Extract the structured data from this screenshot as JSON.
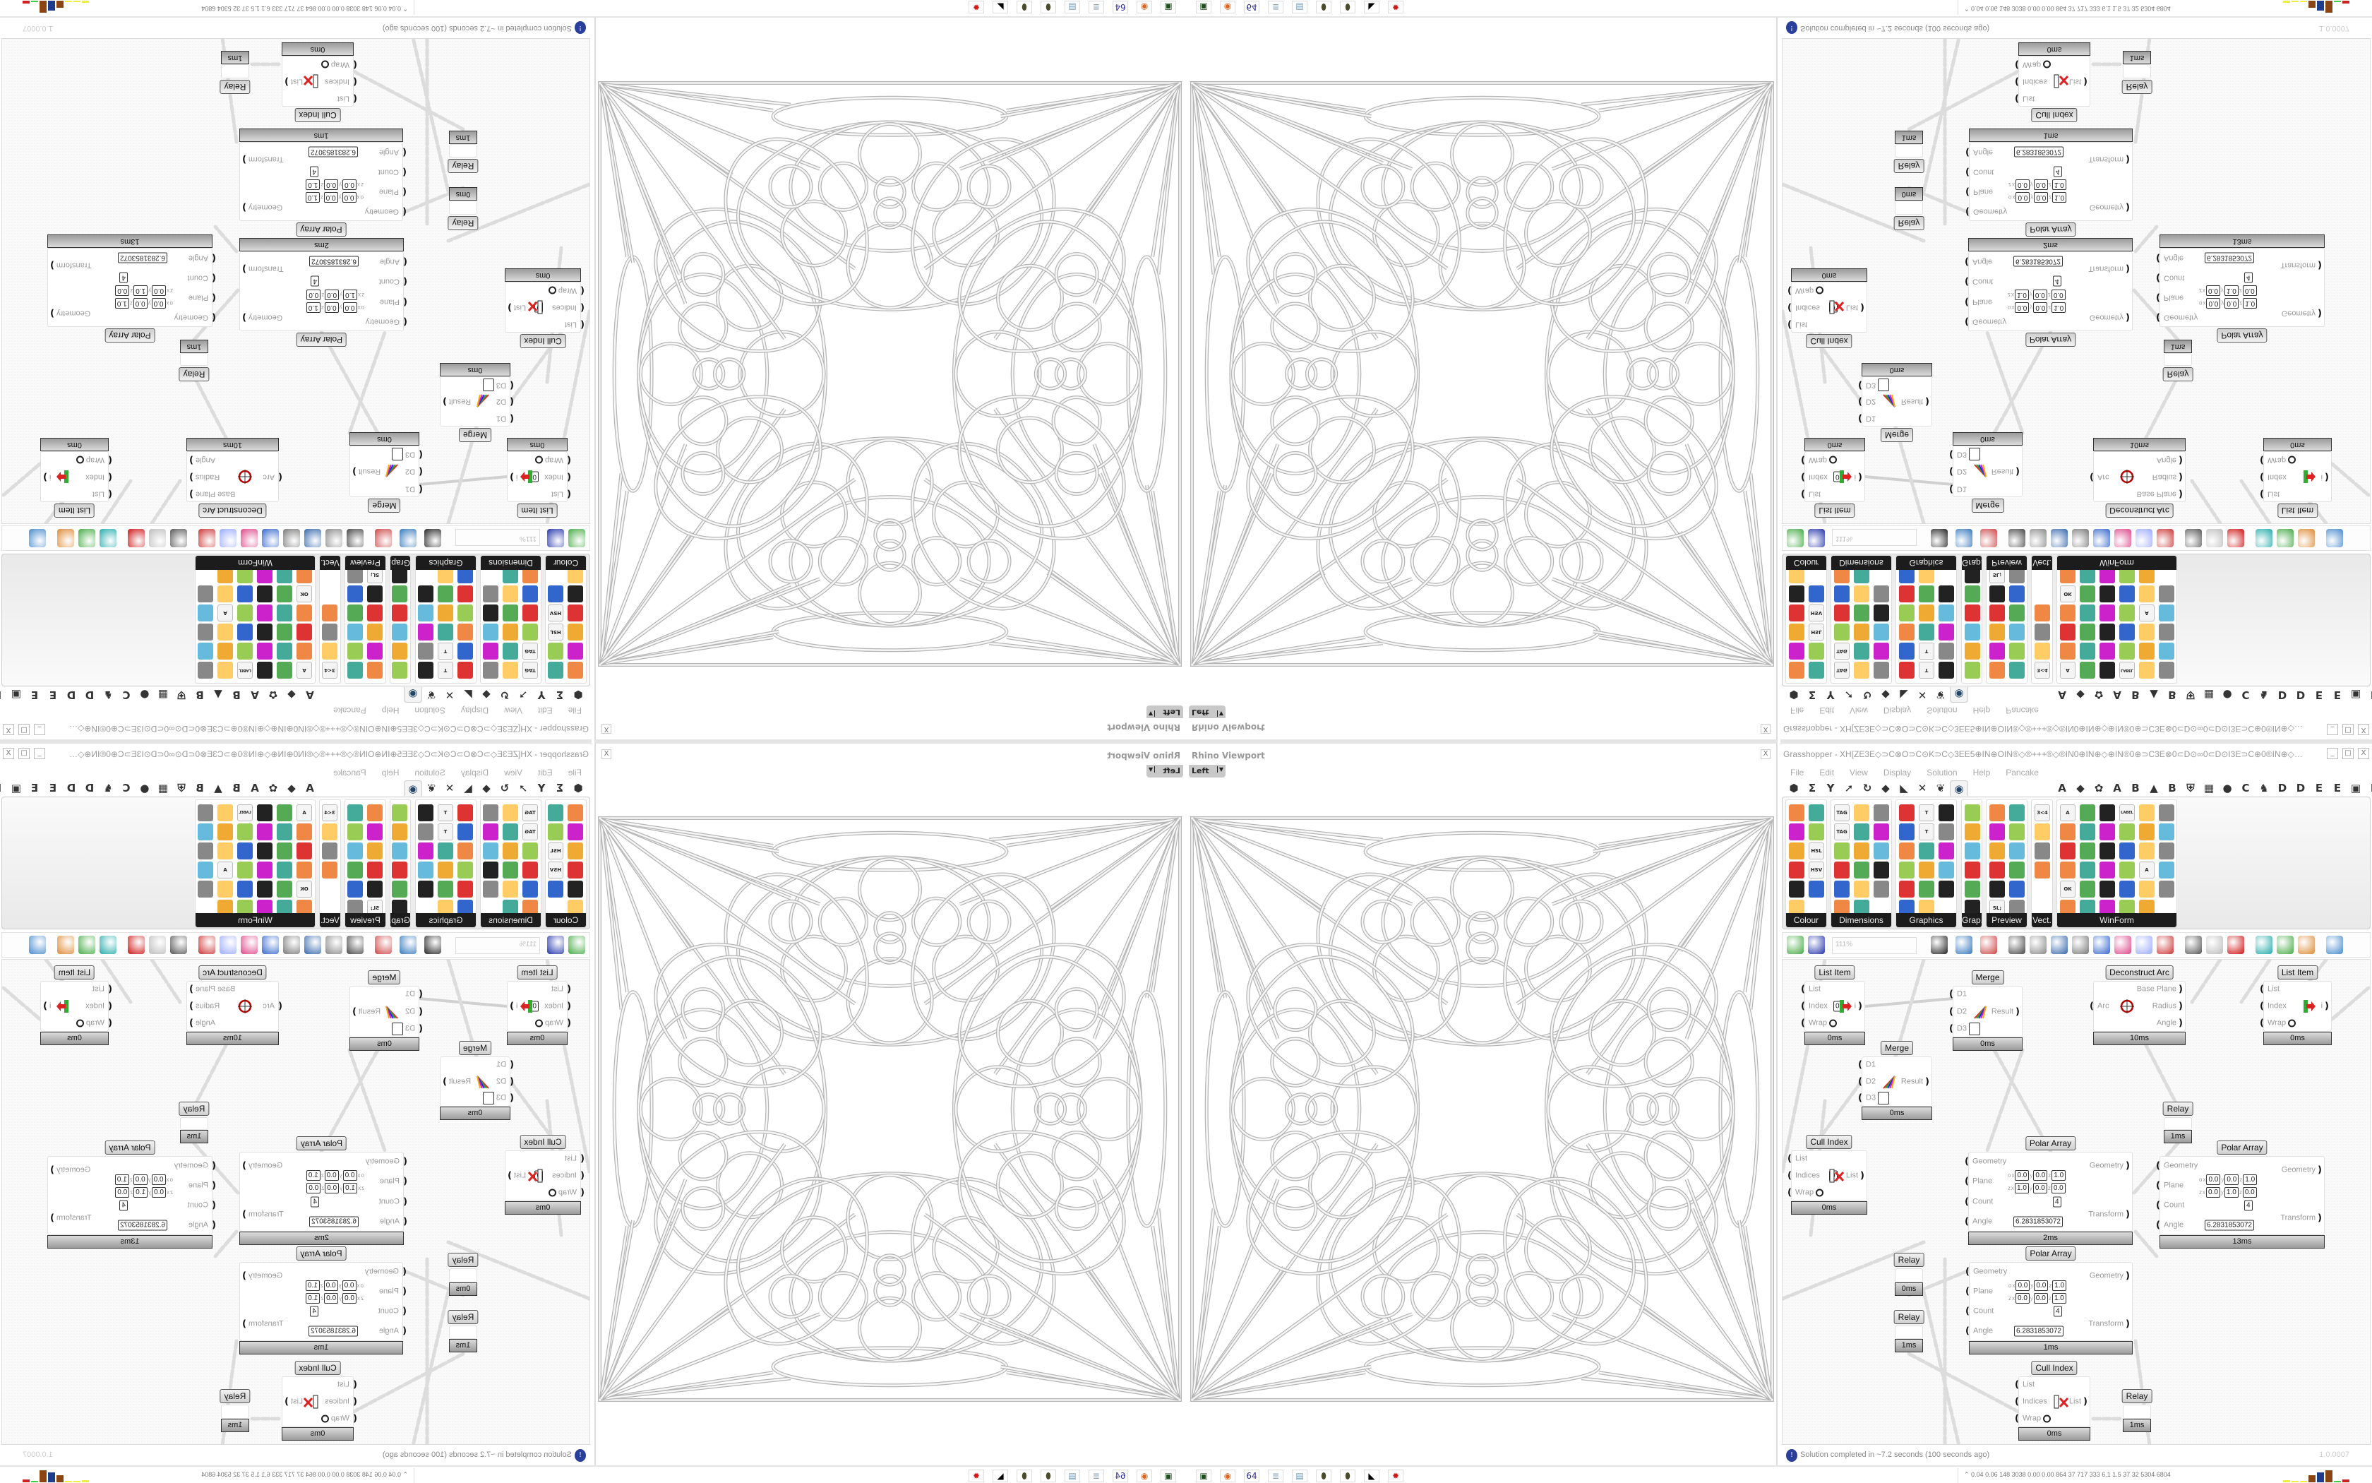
{
  "viewport": {
    "title": "Rhino Viewport",
    "view": "Left",
    "close": "X"
  },
  "grasshopper": {
    "title": "Grasshopper - XH[ZE3E◇⊃C⊗O⊃C⊙K⊃C◇3EE5⊕IN⊕OIN®◇®+++®◇®IN0⊕IN⊕◇⊕IN®0⊕⊃C3E⊗0⊂D⊙∞0⊂D⊙I3E⊃C⊕0®IN⊕◇⊕3E⊙3E⊞+25+⊞3E⊙3E⊕◇⊕K⊂D3E⊞⊕⊕⊃C...",
    "window_buttons": [
      "_",
      "□",
      "X"
    ],
    "menu": [
      "File",
      "Edit",
      "View",
      "Display",
      "Solution",
      "Help",
      "Pancake"
    ],
    "tabs": [
      "⬢",
      "Σ",
      "Y",
      "➚",
      "↻",
      "◆",
      "◣",
      "✕",
      "❦",
      "◉",
      "",
      "A",
      "◆",
      "✿",
      "A",
      "B",
      "▲",
      "B",
      "⛨",
      "▦",
      "●",
      "C",
      "♞",
      "D",
      "D",
      "E",
      "E",
      "▣",
      "E"
    ],
    "active_tab_index": 9,
    "panels": [
      {
        "label": "Colour",
        "icons": [
          "",
          "",
          "",
          "",
          "",
          "HSL",
          "",
          "HSV",
          "",
          "",
          ""
        ]
      },
      {
        "label": "Dimensions",
        "icons": [
          "TAG",
          "",
          "",
          "TAG",
          "",
          "",
          "",
          "",
          "",
          "",
          "",
          "",
          "",
          "",
          "",
          "",
          ""
        ]
      },
      {
        "label": "Graphics",
        "icons": [
          "",
          "T",
          "",
          "",
          "T",
          "",
          "",
          "",
          "",
          "",
          "",
          "",
          "",
          "",
          "",
          "",
          ""
        ]
      },
      {
        "label": "Grap...",
        "icons": [
          "",
          "",
          "",
          "",
          "",
          ""
        ]
      },
      {
        "label": "Preview",
        "icons": [
          "",
          "",
          "",
          "",
          "",
          "",
          "",
          "",
          "",
          "",
          "SL;",
          ""
        ]
      },
      {
        "label": "Vect.",
        "icons": [
          "3<4",
          "",
          "",
          ""
        ]
      },
      {
        "label": "WinForm",
        "icons": [
          "A",
          "",
          "",
          "LABEL",
          "",
          "",
          "",
          "",
          "",
          "",
          "",
          "",
          "",
          "",
          "",
          "",
          "",
          "",
          "",
          "",
          "",
          "",
          "A",
          "",
          "OK",
          "",
          "",
          "",
          "",
          "",
          "",
          "",
          "",
          "",
          ""
        ]
      }
    ],
    "toolbar": {
      "zoom": "111%"
    },
    "nodes": [
      {
        "title": "List Item",
        "icon": "list-item-icon",
        "inputs": [
          {
            "label": "List"
          },
          {
            "label": "Index",
            "value": "0"
          },
          {
            "label": "Wrap",
            "toggle": true
          }
        ],
        "outputs": [
          {
            "label": "i"
          }
        ],
        "time": "0ms"
      },
      {
        "title": "Merge",
        "icon": "merge-icon",
        "inputs": [
          {
            "label": "D1"
          },
          {
            "label": "D2"
          },
          {
            "label": "D3",
            "empty": true
          }
        ],
        "outputs": [
          {
            "label": "Result"
          }
        ],
        "time": "0ms"
      },
      {
        "title": "Deconstruct Arc",
        "icon": "arc-target-icon",
        "inputs": [
          {
            "label": "Arc"
          }
        ],
        "outputs": [
          {
            "label": "Base Plane"
          },
          {
            "label": "Radius"
          },
          {
            "label": "Angle"
          }
        ],
        "time": "10ms"
      },
      {
        "title": "List Item",
        "icon": "list-item-icon",
        "inputs": [
          {
            "label": "List"
          },
          {
            "label": "Index"
          },
          {
            "label": "Wrap",
            "toggle": true
          }
        ],
        "outputs": [
          {
            "label": "i"
          }
        ],
        "time": "0ms"
      },
      {
        "title": "Merge",
        "icon": "merge-icon",
        "inputs": [
          {
            "label": "D1"
          },
          {
            "label": "D2"
          },
          {
            "label": "D3",
            "empty": true
          }
        ],
        "outputs": [
          {
            "label": "Result"
          }
        ],
        "time": "0ms"
      },
      {
        "title": "Relay",
        "inputs": [],
        "outputs": [],
        "time": "1ms"
      },
      {
        "title": "Cull Index",
        "icon": "cull-icon",
        "inputs": [
          {
            "label": "List"
          },
          {
            "label": "Indices",
            "value": "0"
          },
          {
            "label": "Wrap",
            "toggle": true
          }
        ],
        "outputs": [
          {
            "label": "List"
          }
        ],
        "time": "0ms"
      },
      {
        "title": "Polar Array",
        "inputs": [
          {
            "label": "Geometry"
          },
          {
            "label": "Plane",
            "plane": {
              "o": [
                "0.0",
                "0.0",
                "1.0"
              ],
              "z": [
                "1.0",
                "0.0",
                "0.0"
              ]
            }
          },
          {
            "label": "Count",
            "value": "4"
          },
          {
            "label": "Angle",
            "value": "6.2831853072"
          }
        ],
        "outputs": [
          {
            "label": "Geometry"
          },
          {
            "label": "Transform"
          }
        ],
        "time": "2ms"
      },
      {
        "title": "Polar Array",
        "inputs": [
          {
            "label": "Geometry"
          },
          {
            "label": "Plane",
            "plane": {
              "o": [
                "0.0",
                "0.0",
                "1.0"
              ],
              "z": [
                "0.0",
                "1.0",
                "0.0"
              ]
            }
          },
          {
            "label": "Count",
            "value": "4"
          },
          {
            "label": "Angle",
            "value": "6.2831853072"
          }
        ],
        "outputs": [
          {
            "label": "Geometry"
          },
          {
            "label": "Transform"
          }
        ],
        "time": "13ms"
      },
      {
        "title": "Polar Array",
        "inputs": [
          {
            "label": "Geometry"
          },
          {
            "label": "Plane",
            "plane": {
              "o": [
                "0.0",
                "0.0",
                "1.0"
              ],
              "z": [
                "0.0",
                "0.0",
                "1.0"
              ]
            }
          },
          {
            "label": "Count",
            "value": "4"
          },
          {
            "label": "Angle",
            "value": "6.2831853072"
          }
        ],
        "outputs": [
          {
            "label": "Geometry"
          },
          {
            "label": "Transform"
          }
        ],
        "time": "1ms"
      },
      {
        "title": "Relay",
        "inputs": [],
        "outputs": [],
        "time": "0ms"
      },
      {
        "title": "Relay",
        "inputs": [],
        "outputs": [],
        "time": "1ms"
      },
      {
        "title": "Cull Index",
        "icon": "cull-icon",
        "inputs": [
          {
            "label": "List"
          },
          {
            "label": "Indices"
          },
          {
            "label": "Wrap",
            "toggle": true
          }
        ],
        "outputs": [
          {
            "label": "List"
          }
        ],
        "time": "0ms"
      },
      {
        "title": "Relay",
        "inputs": [],
        "outputs": [],
        "time": "1ms"
      }
    ],
    "status": {
      "message": "Solution completed in ~7.2 seconds (100 seconds ago)",
      "version": "1.0.0007"
    }
  },
  "taskbar": {
    "apps": [
      {
        "name": "terminal-app",
        "glyph": "▣",
        "color": "#1d4d1d"
      },
      {
        "name": "firefox-app",
        "glyph": "◉",
        "color": "#e0641e"
      },
      {
        "name": "floppy-64-app",
        "glyph": "64",
        "color": "#2b2b9a"
      },
      {
        "name": "scroll-app",
        "glyph": "≣",
        "color": "#8aa0b8"
      },
      {
        "name": "notepad-app",
        "glyph": "▤",
        "color": "#6a9ac0"
      },
      {
        "name": "gem-app",
        "glyph": "⬮",
        "color": "#4a4a2a"
      },
      {
        "name": "gem-app-2",
        "glyph": "⬮",
        "color": "#4a4a2a"
      },
      {
        "name": "rhino-app",
        "glyph": "◣",
        "color": "#000000"
      },
      {
        "name": "red-app",
        "glyph": "✹",
        "color": "#d01818"
      }
    ],
    "tray_stats": "0.04 0.06 148 3038 0.00 0.00 864  37  717  333  6.1  1.5  37  32  5304 6804"
  }
}
